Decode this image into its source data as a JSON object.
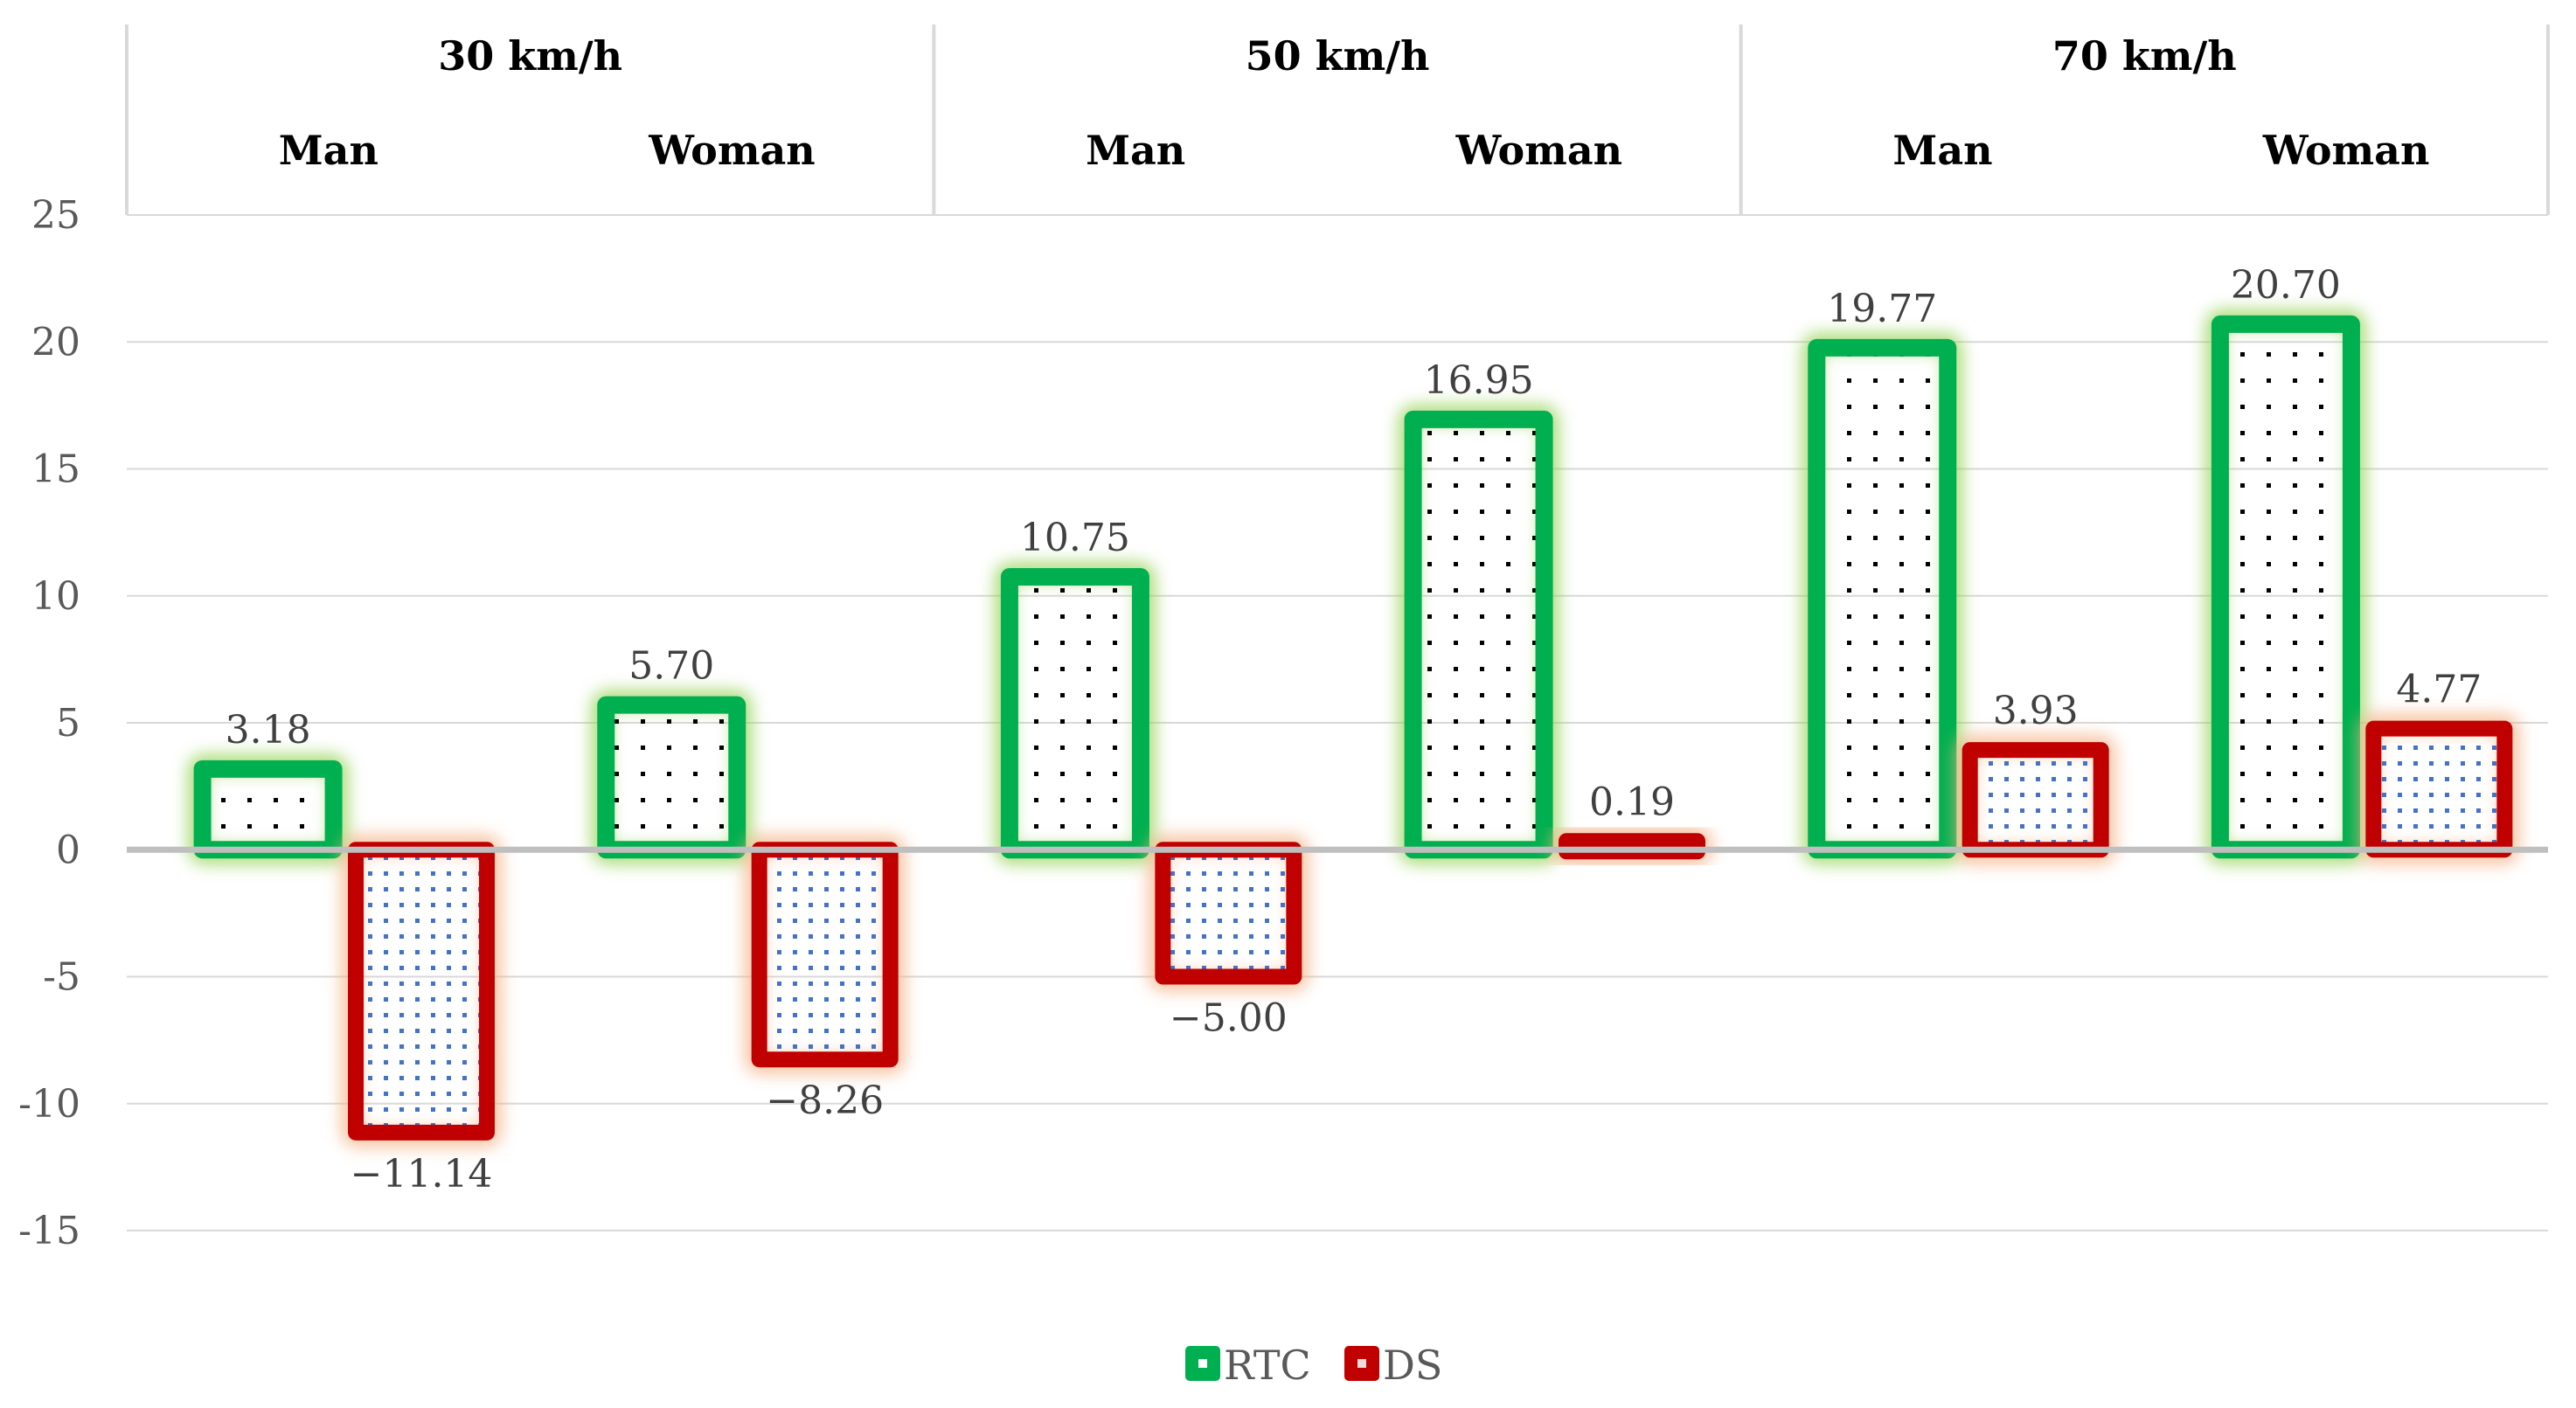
{
  "chart_data": {
    "type": "bar",
    "title": "",
    "xlabel": "",
    "ylabel": "",
    "ylim": [
      -15,
      25
    ],
    "yticks": [
      "-15",
      "-10",
      "-5",
      "0",
      "5",
      "10",
      "15",
      "20",
      "25"
    ],
    "grid": true,
    "legend_position": "bottom",
    "groups": [
      {
        "label": "30 km/h",
        "subcategories": [
          "Man",
          "Woman"
        ]
      },
      {
        "label": "50 km/h",
        "subcategories": [
          "Man",
          "Woman"
        ]
      },
      {
        "label": "70 km/h",
        "subcategories": [
          "Man",
          "Woman"
        ]
      }
    ],
    "series": [
      {
        "name": "RTC",
        "color": "#00b050",
        "values": [
          3.18,
          5.7,
          10.75,
          16.95,
          19.77,
          20.7
        ],
        "labels": [
          "3.18",
          "5.70",
          "10.75",
          "16.95",
          "19.77",
          "20.70"
        ]
      },
      {
        "name": "DS",
        "color": "#c00000",
        "values": [
          -11.14,
          -8.26,
          -5.0,
          0.19,
          3.93,
          4.77
        ],
        "labels": [
          "−11.14",
          "−8.26",
          "−5.00",
          "0.19",
          "3.93",
          "4.77"
        ]
      }
    ]
  }
}
